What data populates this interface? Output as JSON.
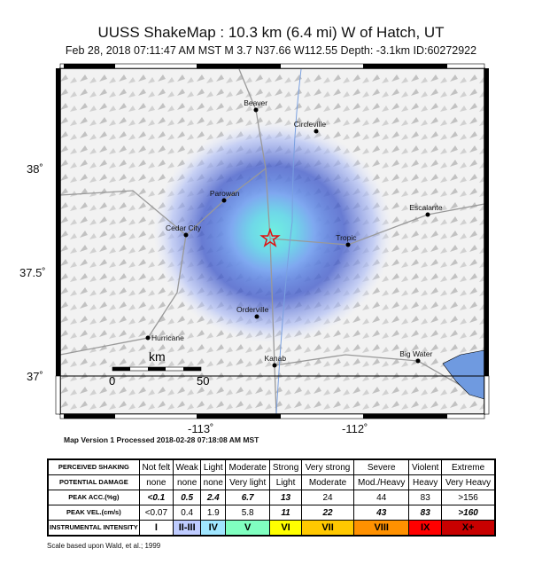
{
  "header": {
    "title": "UUSS ShakeMap : 10.3 km (6.4 mi) W of Hatch, UT",
    "subtitle": "Feb 28, 2018 07:11:47 AM MST   M 3.7   N37.66 W112.55   Depth: -3.1km   ID:60272922"
  },
  "map": {
    "lat_labels": [
      "38˚",
      "37.5˚",
      "37˚"
    ],
    "lon_labels": [
      "-113˚",
      "-112˚"
    ],
    "scale_bar": {
      "unit": "km",
      "start": "0",
      "end": "50"
    },
    "epicenter_icon": "star-icon",
    "cities": [
      "Beaver",
      "Circleville",
      "Parowan",
      "Cedar City",
      "Tropic",
      "Escalante",
      "Orderville",
      "Hurricane",
      "Kanab",
      "Big Water"
    ],
    "colors": {
      "water": "#6f9ae0",
      "shaking_low": "#c8d4ff",
      "shaking_mid": "#3a54c8",
      "shaking_high": "#6ff0e0",
      "epicenter": "#e01010"
    }
  },
  "processed": "Map Version 1 Processed 2018-02-28 07:18:08 AM MST",
  "legend": {
    "rows": [
      {
        "label": "PERCEIVED SHAKING",
        "values": [
          "Not felt",
          "Weak",
          "Light",
          "Moderate",
          "Strong",
          "Very strong",
          "Severe",
          "Violent",
          "Extreme"
        ]
      },
      {
        "label": "POTENTIAL DAMAGE",
        "values": [
          "none",
          "none",
          "none",
          "Very light",
          "Light",
          "Moderate",
          "Mod./Heavy",
          "Heavy",
          "Very Heavy"
        ]
      },
      {
        "label": "PEAK ACC.(%g)",
        "values": [
          "<0.1",
          "0.5",
          "2.4",
          "6.7",
          "13",
          "24",
          "44",
          "83",
          ">156"
        ]
      },
      {
        "label": "PEAK VEL.(cm/s)",
        "values": [
          "<0.07",
          "0.4",
          "1.9",
          "5.8",
          "11",
          "22",
          "43",
          "83",
          ">160"
        ]
      },
      {
        "label": "INSTRUMENTAL INTENSITY",
        "values": [
          "I",
          "II-III",
          "IV",
          "V",
          "VI",
          "VII",
          "VIII",
          "IX",
          "X+"
        ]
      }
    ],
    "intensity_colors": [
      "#ffffff",
      "#bfccff",
      "#a0e6ff",
      "#80ffc0",
      "#ffff00",
      "#ffc800",
      "#ff9100",
      "#ff0000",
      "#c80000"
    ]
  },
  "footnote": "Scale based upon Wald, et al.; 1999"
}
